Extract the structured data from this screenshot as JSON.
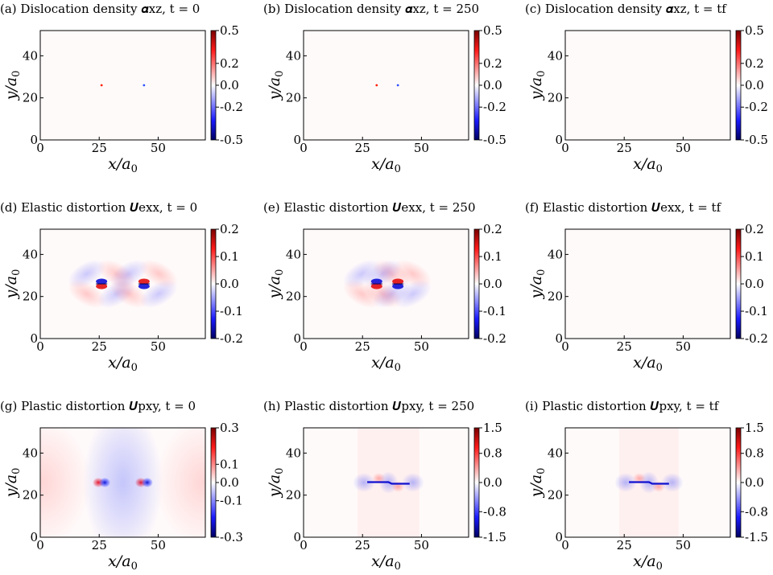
{
  "figure": {
    "panels": [
      {
        "title": "(a) Dislocation density 𝜶xz, t = 0"
      },
      {
        "title": "(b) Dislocation density 𝜶xz, t = 250"
      },
      {
        "title": "(c) Dislocation density 𝜶xz, t = tf"
      },
      {
        "title": "(d) Elastic distortion 𝑼exx, t = 0"
      },
      {
        "title": "(e) Elastic distortion 𝑼exx, t = 250"
      },
      {
        "title": "(f) Elastic distortion 𝑼exx, t = tf"
      },
      {
        "title": "(g) Plastic distortion 𝑼pxy, t = 0"
      },
      {
        "title": "(h) Plastic distortion 𝑼pxy, t = 250"
      },
      {
        "title": "(i) Plastic distortion 𝑼pxy, t = tf"
      }
    ]
  },
  "chart_data": [
    {
      "id": "a",
      "type": "heatmap",
      "title": "(a) Dislocation density 𝜶xz, t = 0",
      "xlabel": "x/a0",
      "ylabel": "y/a0",
      "xlim": [
        0,
        70
      ],
      "ylim": [
        0,
        52
      ],
      "x_ticks": [
        "0",
        "25",
        "50"
      ],
      "y_ticks": [
        "0",
        "20",
        "40"
      ],
      "colorbar": {
        "range": [
          -0.5,
          0.5
        ],
        "ticks": [
          "0.5",
          "0.2",
          "0.0",
          "-0.2",
          "-0.5"
        ]
      },
      "features": [
        {
          "kind": "point",
          "x": 26,
          "y": 26,
          "value": 0.5
        },
        {
          "kind": "point",
          "x": 44,
          "y": 26,
          "value": -0.5
        }
      ]
    },
    {
      "id": "b",
      "type": "heatmap",
      "title": "(b) Dislocation density 𝜶xz, t = 250",
      "xlabel": "x/a0",
      "ylabel": "y/a0",
      "xlim": [
        0,
        70
      ],
      "ylim": [
        0,
        52
      ],
      "x_ticks": [
        "0",
        "25",
        "50"
      ],
      "y_ticks": [
        "0",
        "20",
        "40"
      ],
      "colorbar": {
        "range": [
          -0.5,
          0.5
        ],
        "ticks": [
          "0.5",
          "0.2",
          "0.0",
          "-0.2",
          "-0.5"
        ]
      },
      "features": [
        {
          "kind": "point",
          "x": 31,
          "y": 26,
          "value": 0.5
        },
        {
          "kind": "point",
          "x": 40,
          "y": 26,
          "value": -0.5
        }
      ]
    },
    {
      "id": "c",
      "type": "heatmap",
      "title": "(c) Dislocation density 𝜶xz, t = tf",
      "xlabel": "x/a0",
      "ylabel": "y/a0",
      "xlim": [
        0,
        70
      ],
      "ylim": [
        0,
        52
      ],
      "x_ticks": [
        "0",
        "25",
        "50"
      ],
      "y_ticks": [
        "0",
        "20",
        "40"
      ],
      "colorbar": {
        "range": [
          -0.5,
          0.5
        ],
        "ticks": [
          "0.5",
          "0.2",
          "0.0",
          "-0.2",
          "-0.5"
        ]
      },
      "features": []
    },
    {
      "id": "d",
      "type": "heatmap",
      "title": "(d) Elastic distortion 𝑼exx, t = 0",
      "xlabel": "x/a0",
      "ylabel": "y/a0",
      "xlim": [
        0,
        70
      ],
      "ylim": [
        0,
        52
      ],
      "x_ticks": [
        "0",
        "25",
        "50"
      ],
      "y_ticks": [
        "0",
        "20",
        "40"
      ],
      "colorbar": {
        "range": [
          -0.2,
          0.2
        ],
        "ticks": [
          "0.2",
          "0.1",
          "0.0",
          "-0.1",
          "-0.2"
        ]
      },
      "features": [
        {
          "kind": "dipole-lobes",
          "x": 26,
          "y": 26,
          "sign": 1
        },
        {
          "kind": "dipole-lobes",
          "x": 44,
          "y": 26,
          "sign": -1
        }
      ]
    },
    {
      "id": "e",
      "type": "heatmap",
      "title": "(e) Elastic distortion 𝑼exx, t = 250",
      "xlabel": "x/a0",
      "ylabel": "y/a0",
      "xlim": [
        0,
        70
      ],
      "ylim": [
        0,
        52
      ],
      "x_ticks": [
        "0",
        "25",
        "50"
      ],
      "y_ticks": [
        "0",
        "20",
        "40"
      ],
      "colorbar": {
        "range": [
          -0.2,
          0.2
        ],
        "ticks": [
          "0.2",
          "0.1",
          "0.0",
          "-0.1",
          "-0.2"
        ]
      },
      "features": [
        {
          "kind": "dipole-lobes",
          "x": 31,
          "y": 26,
          "sign": 1
        },
        {
          "kind": "dipole-lobes",
          "x": 40,
          "y": 26,
          "sign": -1
        }
      ]
    },
    {
      "id": "f",
      "type": "heatmap",
      "title": "(f) Elastic distortion 𝑼exx, t = tf",
      "xlabel": "x/a0",
      "ylabel": "y/a0",
      "xlim": [
        0,
        70
      ],
      "ylim": [
        0,
        52
      ],
      "x_ticks": [
        "0",
        "25",
        "50"
      ],
      "y_ticks": [
        "0",
        "20",
        "40"
      ],
      "colorbar": {
        "range": [
          -0.2,
          0.2
        ],
        "ticks": [
          "0.2",
          "0.1",
          "0.0",
          "-0.1",
          "-0.2"
        ]
      },
      "features": []
    },
    {
      "id": "g",
      "type": "heatmap",
      "title": "(g) Plastic distortion 𝑼pxy, t = 0",
      "xlabel": "x/a0",
      "ylabel": "y/a0",
      "xlim": [
        0,
        70
      ],
      "ylim": [
        0,
        52
      ],
      "x_ticks": [
        "0",
        "25",
        "50"
      ],
      "y_ticks": [
        "0",
        "20",
        "40"
      ],
      "colorbar": {
        "range": [
          -0.3,
          0.3
        ],
        "ticks": [
          "0.3",
          "0.1",
          "0.0",
          "-0.1",
          "-0.3"
        ]
      },
      "features": [
        {
          "kind": "core-pair",
          "x": 26,
          "y": 26
        },
        {
          "kind": "core-pair",
          "x": 44,
          "y": 26
        },
        {
          "kind": "center-blue",
          "x": 35,
          "y": 26
        }
      ]
    },
    {
      "id": "h",
      "type": "heatmap",
      "title": "(h) Plastic distortion 𝑼pxy, t = 250",
      "xlabel": "x/a0",
      "ylabel": "y/a0",
      "xlim": [
        0,
        70
      ],
      "ylim": [
        0,
        52
      ],
      "x_ticks": [
        "0",
        "25",
        "50"
      ],
      "y_ticks": [
        "0",
        "20",
        "40"
      ],
      "colorbar": {
        "range": [
          -1.5,
          1.5
        ],
        "ticks": [
          "1.5",
          "0.8",
          "0.0",
          "-0.8",
          "-1.5"
        ]
      },
      "features": [
        {
          "kind": "slip-band",
          "x_start": 27,
          "x_end": 45,
          "y": 26
        }
      ]
    },
    {
      "id": "i",
      "type": "heatmap",
      "title": "(i) Plastic distortion 𝑼pxy, t = tf",
      "xlabel": "x/a0",
      "ylabel": "y/a0",
      "xlim": [
        0,
        70
      ],
      "ylim": [
        0,
        52
      ],
      "x_ticks": [
        "0",
        "25",
        "50"
      ],
      "y_ticks": [
        "0",
        "20",
        "40"
      ],
      "colorbar": {
        "range": [
          -1.5,
          1.5
        ],
        "ticks": [
          "1.5",
          "0.8",
          "0.0",
          "-0.8",
          "-1.5"
        ]
      },
      "features": [
        {
          "kind": "slip-band",
          "x_start": 27,
          "x_end": 44,
          "y": 26
        }
      ]
    }
  ]
}
